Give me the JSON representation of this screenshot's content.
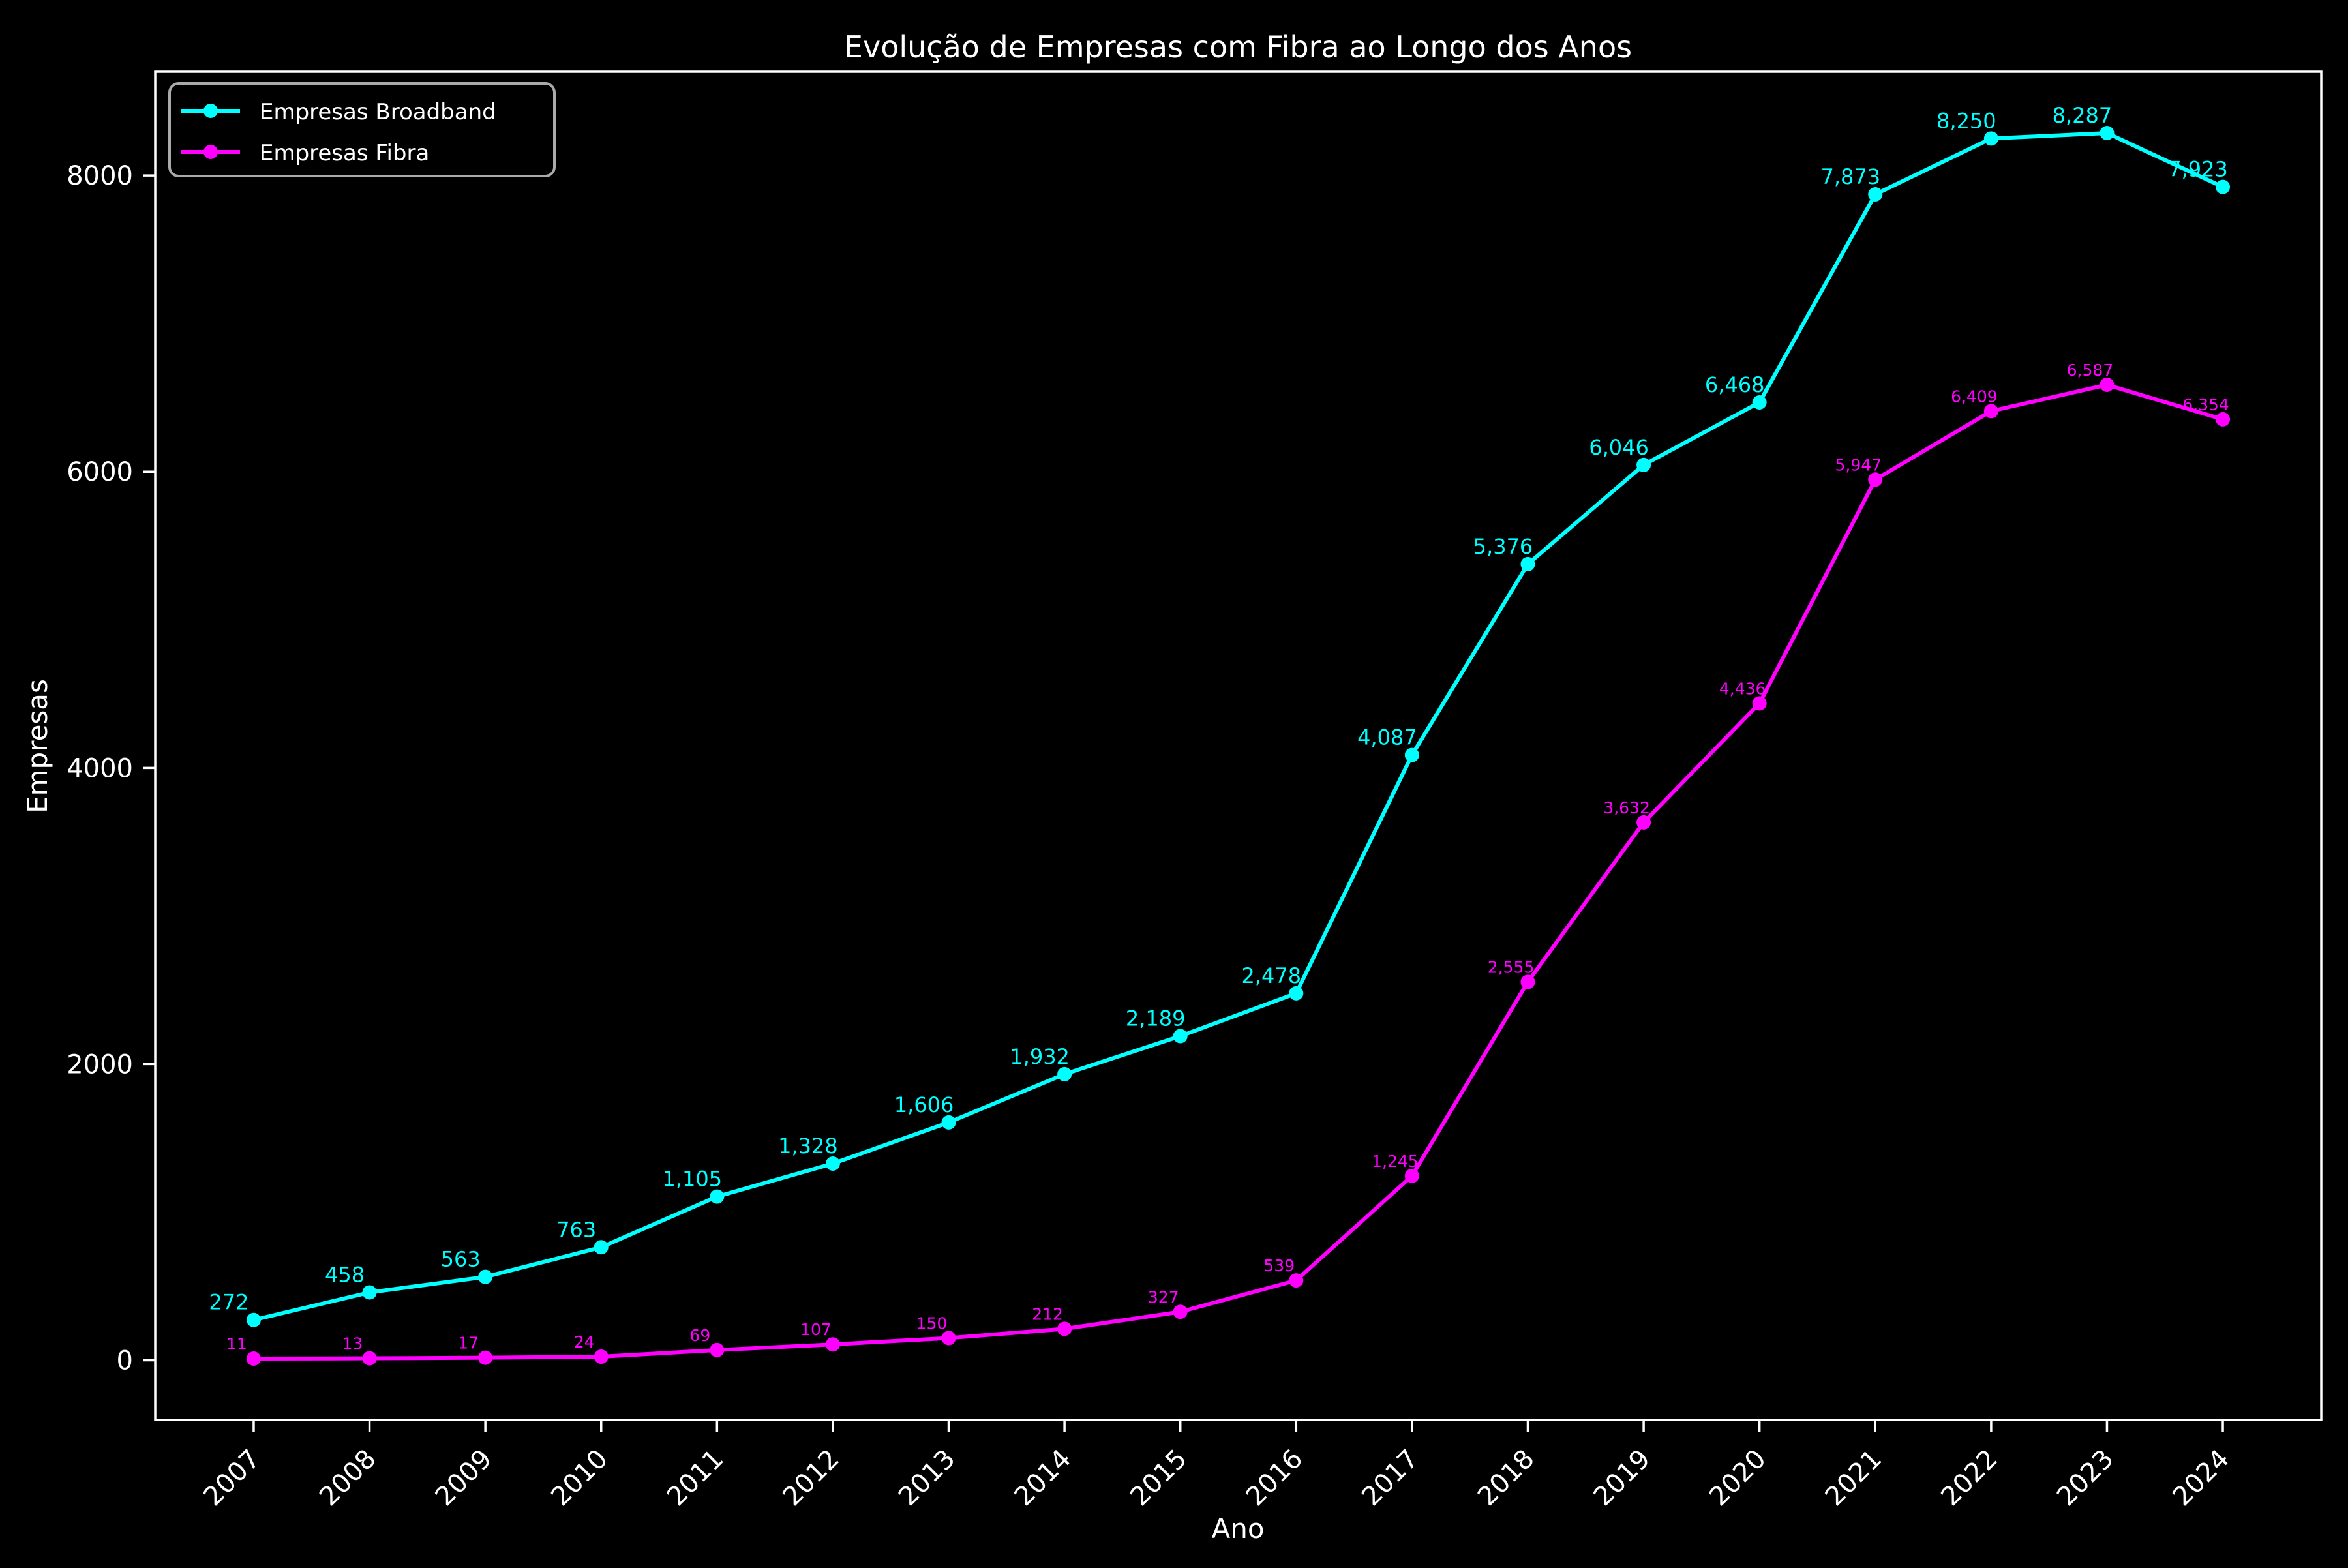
{
  "title": "Evolução de Empresas com Fibra ao Longo dos Anos",
  "xlabel": "Ano",
  "ylabel": "Empresas",
  "colors": {
    "background": "#000000",
    "text": "#ffffff",
    "broadband": "#00ffff",
    "fibra": "#ff00ff",
    "legend_border": "#aaaaaa"
  },
  "legend": {
    "position": "upper left",
    "items": [
      {
        "label": "Empresas Broadband",
        "color": "#00ffff"
      },
      {
        "label": "Empresas Fibra",
        "color": "#ff00ff"
      }
    ]
  },
  "chart_data": {
    "type": "line",
    "title": "Evolução de Empresas com Fibra ao Longo dos Anos",
    "xlabel": "Ano",
    "ylabel": "Empresas",
    "x": [
      2007,
      2008,
      2009,
      2010,
      2011,
      2012,
      2013,
      2014,
      2015,
      2016,
      2017,
      2018,
      2019,
      2020,
      2021,
      2022,
      2023,
      2024
    ],
    "xticks": [
      "2007",
      "2008",
      "2009",
      "2010",
      "2011",
      "2012",
      "2013",
      "2014",
      "2015",
      "2016",
      "2017",
      "2018",
      "2019",
      "2020",
      "2021",
      "2022",
      "2023",
      "2024"
    ],
    "yticks": [
      0,
      2000,
      4000,
      6000,
      8000
    ],
    "xlim": [
      2006.15,
      2024.85
    ],
    "ylim": [
      -403,
      8701
    ],
    "grid": false,
    "legend_position": "upper left",
    "series": [
      {
        "name": "Empresas Broadband",
        "color": "#00ffff",
        "values": [
          272,
          458,
          563,
          763,
          1105,
          1328,
          1606,
          1932,
          2189,
          2478,
          4087,
          5376,
          6046,
          6468,
          7873,
          8250,
          8287,
          7923
        ],
        "labels": [
          "272",
          "458",
          "563",
          "763",
          "1,105",
          "1,328",
          "1,606",
          "1,932",
          "2,189",
          "2,478",
          "4,087",
          "5,376",
          "6,046",
          "6,468",
          "7,873",
          "8,250",
          "8,287",
          "7,923"
        ]
      },
      {
        "name": "Empresas Fibra",
        "color": "#ff00ff",
        "values": [
          11,
          13,
          17,
          24,
          69,
          107,
          150,
          212,
          327,
          539,
          1245,
          2555,
          3632,
          4436,
          5947,
          6409,
          6587,
          6354
        ],
        "labels": [
          "11",
          "13",
          "17",
          "24",
          "69",
          "107",
          "150",
          "212",
          "327",
          "539",
          "1,245",
          "2,555",
          "3,632",
          "4,436",
          "5,947",
          "6,409",
          "6,587",
          "6,354"
        ]
      }
    ]
  }
}
